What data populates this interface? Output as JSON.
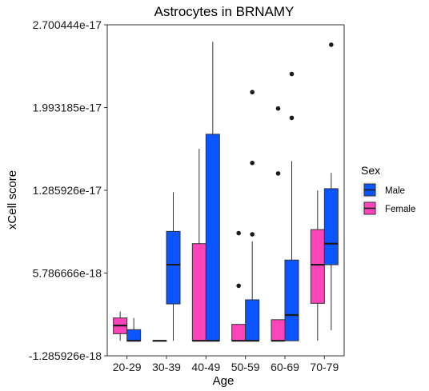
{
  "chart_data": {
    "type": "boxplot",
    "title": "Astrocytes in BRNAMY",
    "xlabel": "Age",
    "ylabel": "xCell score",
    "categories": [
      "20-29",
      "30-39",
      "40-49",
      "50-59",
      "60-69",
      "70-79"
    ],
    "ylim": [
      -1.285926e-18,
      2.700444e-17
    ],
    "yticks": [
      -1.285926e-18,
      5.786666e-18,
      1.285926e-17,
      1.993185e-17,
      2.700444e-17
    ],
    "ytick_labels": [
      "-1.285926e-18",
      "5.786666e-18",
      "1.285926e-17",
      "1.993185e-17",
      "2.700444e-17"
    ],
    "grid": false,
    "legend": {
      "title": "Sex",
      "placement": "right",
      "entries": [
        {
          "name": "Male",
          "color": "#0A55FF"
        },
        {
          "name": "Female",
          "color": "#FF44BB"
        }
      ]
    },
    "series": [
      {
        "name": "Female",
        "color": "#FF44BB",
        "boxes": [
          {
            "category": "20-29",
            "min": 0.0,
            "q1": 6e-19,
            "median": 1.3e-18,
            "q3": 1.95e-18,
            "max": 2.5e-18,
            "outliers": []
          },
          {
            "category": "30-39",
            "min": 0.0,
            "q1": 0.0,
            "median": 0.0,
            "q3": 0.0,
            "max": 0.0,
            "outliers": []
          },
          {
            "category": "40-49",
            "min": 0.0,
            "q1": 0.0,
            "median": 0.0,
            "q3": 8.3e-18,
            "max": 1.64e-17,
            "outliers": []
          },
          {
            "category": "50-59",
            "min": 0.0,
            "q1": 0.0,
            "median": 0.0,
            "q3": 1.4e-18,
            "max": 1.4e-18,
            "outliers": [
              4.7e-18,
              9.2e-18
            ]
          },
          {
            "category": "60-69",
            "min": 0.0,
            "q1": 0.0,
            "median": 0.0,
            "q3": 1.8e-18,
            "max": 1.8e-18,
            "outliers": [
              1.43e-17,
              1.985e-17
            ]
          },
          {
            "category": "70-79",
            "min": 0.0,
            "q1": 3.2e-18,
            "median": 6.5e-18,
            "q3": 9.5e-18,
            "max": 1.285e-17,
            "outliers": []
          }
        ]
      },
      {
        "name": "Male",
        "color": "#0A55FF",
        "boxes": [
          {
            "category": "20-29",
            "min": 0.0,
            "q1": 0.0,
            "median": 0.0,
            "q3": 9.5e-19,
            "max": 1.95e-18,
            "outliers": []
          },
          {
            "category": "30-39",
            "min": 0.0,
            "q1": 3.15e-18,
            "median": 6.5e-18,
            "q3": 9.35e-18,
            "max": 1.27e-17,
            "outliers": []
          },
          {
            "category": "40-49",
            "min": 0.0,
            "q1": 0.0,
            "median": 0.0,
            "q3": 1.765e-17,
            "max": 2.555e-17,
            "outliers": []
          },
          {
            "category": "50-59",
            "min": 0.0,
            "q1": 0.0,
            "median": 0.0,
            "q3": 3.5e-18,
            "max": 8.5e-18,
            "outliers": [
              9.1e-18,
              1.52e-17,
              2.125e-17
            ]
          },
          {
            "category": "60-69",
            "min": 0.0,
            "q1": 0.0,
            "median": 2.2e-18,
            "q3": 6.9e-18,
            "max": 1.535e-17,
            "outliers": [
              1.905e-17,
              2.28e-17
            ]
          },
          {
            "category": "70-79",
            "min": 9e-19,
            "q1": 6.5e-18,
            "median": 8.3e-18,
            "q3": 1.3e-17,
            "max": 1.435e-17,
            "outliers": [
              2.53e-17
            ]
          }
        ]
      }
    ]
  }
}
